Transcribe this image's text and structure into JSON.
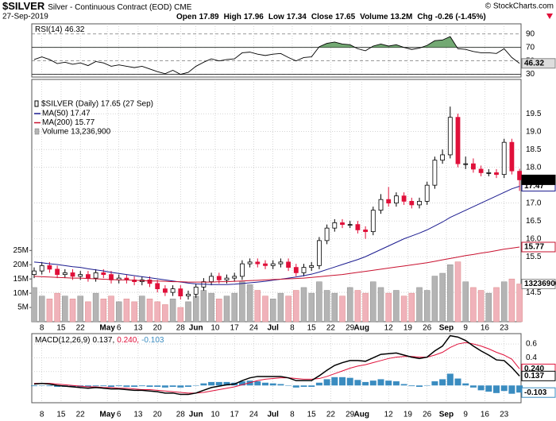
{
  "chart_data": {
    "type": "candlestick",
    "title": "$SILVER",
    "subtitle": "Silver - Continuous Contract (EOD) CME",
    "date": "27-Sep-2019",
    "quote": [
      {
        "label": "Open",
        "value": 17.89
      },
      {
        "label": "High",
        "value": 17.96
      },
      {
        "label": "Low",
        "value": 17.34
      },
      {
        "label": "Close",
        "value": 17.65
      },
      {
        "label": "Volume",
        "value": 13200000,
        "value_label": "13.2M"
      },
      {
        "label": "Chg",
        "value": -0.26,
        "value_label": "-0.26 (-1.45%)"
      }
    ],
    "credit": "© StockCharts.com",
    "legend": "$SILVER (Daily) 17.65 (27 Sep)",
    "last": 17.65,
    "up_color": "#000000",
    "down_color": "#e0103a",
    "grid": true,
    "xticks": [
      {
        "value": 1,
        "label": "8"
      },
      {
        "value": 3.5,
        "label": "15"
      },
      {
        "value": 6,
        "label": "22"
      },
      {
        "value": 9.5,
        "label": "May"
      },
      {
        "value": 11,
        "label": "6"
      },
      {
        "value": 13.5,
        "label": "13"
      },
      {
        "value": 16,
        "label": "20"
      },
      {
        "value": 19,
        "label": "28"
      },
      {
        "value": 21,
        "label": "Jun"
      },
      {
        "value": 23.5,
        "label": "10"
      },
      {
        "value": 26,
        "label": "17"
      },
      {
        "value": 28.5,
        "label": "24"
      },
      {
        "value": 31,
        "label": "Jul"
      },
      {
        "value": 33.5,
        "label": "8"
      },
      {
        "value": 36,
        "label": "15"
      },
      {
        "value": 38.5,
        "label": "22"
      },
      {
        "value": 41,
        "label": "29"
      },
      {
        "value": 42.5,
        "label": "Aug"
      },
      {
        "value": 46,
        "label": "12"
      },
      {
        "value": 48.5,
        "label": "19"
      },
      {
        "value": 51,
        "label": "26"
      },
      {
        "value": 53.5,
        "label": "Sep"
      },
      {
        "value": 56,
        "label": "9"
      },
      {
        "value": 58.5,
        "label": "16"
      },
      {
        "value": 61,
        "label": "23"
      }
    ],
    "ylim": [
      13.68,
      20.46
    ],
    "yticks": [
      14.5,
      15.5,
      {
        "value": 16,
        "label": "16.0"
      },
      16.5,
      {
        "value": 17,
        "label": "17.0"
      },
      {
        "value": 18,
        "label": "18.0"
      },
      18.5,
      {
        "value": 19,
        "label": "19.0"
      },
      19.5
    ],
    "open": [
      15.0,
      15.1,
      15.25,
      15.15,
      15.0,
      15.05,
      14.95,
      15.0,
      14.9,
      15.05,
      15.0,
      14.85,
      14.9,
      14.85,
      14.8,
      14.85,
      14.75,
      14.6,
      14.5,
      14.6,
      14.4,
      14.45,
      14.65,
      14.8,
      14.95,
      14.85,
      14.9,
      14.95,
      15.3,
      15.35,
      15.3,
      15.25,
      15.3,
      15.35,
      15.2,
      15.05,
      15.2,
      15.25,
      15.95,
      16.3,
      16.45,
      16.4,
      16.4,
      16.25,
      16.2,
      16.8,
      17.1,
      17.0,
      17.2,
      17.05,
      16.95,
      17.05,
      17.5,
      18.2,
      18.35,
      19.4,
      18.1,
      18.1,
      17.95,
      17.85,
      17.85,
      17.8,
      18.7,
      17.89
    ],
    "high": [
      15.2,
      15.35,
      15.35,
      15.25,
      15.15,
      15.15,
      15.1,
      15.1,
      15.15,
      15.15,
      15.1,
      15.0,
      15.0,
      14.95,
      14.95,
      14.95,
      14.85,
      14.7,
      14.7,
      14.7,
      14.55,
      14.75,
      14.9,
      15.05,
      15.05,
      15.0,
      15.05,
      15.4,
      15.45,
      15.45,
      15.4,
      15.4,
      15.45,
      15.45,
      15.3,
      15.3,
      15.35,
      16.05,
      16.4,
      16.55,
      16.55,
      16.5,
      16.5,
      16.35,
      16.9,
      17.25,
      17.45,
      17.3,
      17.3,
      17.15,
      17.15,
      17.6,
      18.3,
      18.5,
      19.7,
      19.5,
      18.3,
      18.25,
      18.05,
      17.95,
      17.95,
      18.8,
      18.8,
      17.96
    ],
    "low": [
      14.9,
      15.0,
      15.05,
      14.9,
      14.9,
      14.85,
      14.85,
      14.8,
      14.8,
      14.9,
      14.75,
      14.75,
      14.75,
      14.7,
      14.7,
      14.65,
      14.5,
      14.4,
      14.4,
      14.3,
      14.3,
      14.35,
      14.55,
      14.7,
      14.75,
      14.75,
      14.8,
      14.85,
      15.2,
      15.2,
      15.15,
      15.15,
      15.2,
      15.1,
      14.95,
      14.95,
      15.1,
      15.15,
      15.85,
      16.2,
      16.3,
      16.3,
      16.15,
      16.0,
      16.1,
      16.7,
      16.9,
      16.9,
      16.95,
      16.85,
      16.85,
      16.95,
      17.4,
      18.1,
      18.25,
      18.0,
      17.95,
      17.85,
      17.75,
      17.75,
      17.7,
      17.7,
      17.8,
      17.34
    ],
    "close": [
      15.1,
      15.25,
      15.15,
      15.0,
      15.05,
      14.95,
      15.0,
      14.9,
      15.05,
      15.0,
      14.85,
      14.9,
      14.85,
      14.8,
      14.85,
      14.75,
      14.6,
      14.5,
      14.6,
      14.4,
      14.45,
      14.65,
      14.8,
      14.95,
      14.85,
      14.9,
      14.95,
      15.3,
      15.35,
      15.3,
      15.25,
      15.3,
      15.35,
      15.2,
      15.05,
      15.2,
      15.25,
      15.95,
      16.3,
      16.45,
      16.4,
      16.4,
      16.25,
      16.2,
      16.8,
      17.1,
      17.0,
      17.2,
      17.05,
      16.95,
      17.05,
      17.5,
      18.2,
      18.35,
      19.4,
      18.1,
      18.1,
      17.95,
      17.85,
      17.85,
      17.8,
      18.7,
      17.9,
      17.65
    ],
    "series": [
      {
        "name": "MA(50) 17.47",
        "color": "#1b1b8f",
        "last": 17.47,
        "values": [
          15.35,
          15.33,
          15.3,
          15.28,
          15.25,
          15.22,
          15.2,
          15.16,
          15.13,
          15.1,
          15.06,
          15.03,
          15.0,
          14.97,
          14.94,
          14.91,
          14.88,
          14.85,
          14.82,
          14.79,
          14.76,
          14.74,
          14.73,
          14.72,
          14.72,
          14.72,
          14.73,
          14.75,
          14.77,
          14.79,
          14.81,
          14.84,
          14.87,
          14.9,
          14.93,
          14.97,
          15.01,
          15.07,
          15.14,
          15.21,
          15.28,
          15.35,
          15.42,
          15.5,
          15.6,
          15.7,
          15.8,
          15.9,
          16.0,
          16.08,
          16.16,
          16.25,
          16.36,
          16.47,
          16.6,
          16.7,
          16.8,
          16.9,
          17.0,
          17.1,
          17.2,
          17.3,
          17.4,
          17.47
        ]
      },
      {
        "name": "MA(200) 15.77",
        "color": "#c8102e",
        "last": 15.77,
        "values": [
          14.95,
          14.94,
          14.93,
          14.92,
          14.91,
          14.9,
          14.9,
          14.89,
          14.88,
          14.87,
          14.86,
          14.85,
          14.85,
          14.84,
          14.83,
          14.82,
          14.82,
          14.81,
          14.8,
          14.8,
          14.79,
          14.79,
          14.79,
          14.79,
          14.8,
          14.8,
          14.81,
          14.82,
          14.83,
          14.84,
          14.85,
          14.86,
          14.87,
          14.88,
          14.89,
          14.9,
          14.92,
          14.94,
          14.96,
          14.98,
          15.0,
          15.03,
          15.06,
          15.09,
          15.12,
          15.15,
          15.18,
          15.21,
          15.24,
          15.27,
          15.3,
          15.33,
          15.37,
          15.41,
          15.45,
          15.49,
          15.53,
          15.56,
          15.6,
          15.63,
          15.67,
          15.71,
          15.74,
          15.77
        ]
      }
    ],
    "volume": {
      "name": "Volume 13,236,900",
      "last": 13236900,
      "up_color": "#b4b4b4",
      "down_color": "#f0b2ba",
      "ylim": [
        0,
        85000000
      ],
      "yticks": [
        {
          "value": 5000000,
          "label": "5M"
        },
        {
          "value": 10000000,
          "label": "10M"
        },
        {
          "value": 15000000,
          "label": "15M"
        },
        {
          "value": 20000000,
          "label": "20M"
        },
        {
          "value": 25000000,
          "label": "25M"
        }
      ],
      "values": [
        12000000,
        9000000,
        8000000,
        10000000,
        9000000,
        8000000,
        9000000,
        7000000,
        10000000,
        8000000,
        9000000,
        7000000,
        8000000,
        7000000,
        9000000,
        8000000,
        7000000,
        6000000,
        8000000,
        5000000,
        7000000,
        9000000,
        11000000,
        10000000,
        8000000,
        9000000,
        10000000,
        14000000,
        13000000,
        11000000,
        9000000,
        8000000,
        10000000,
        9000000,
        11000000,
        12000000,
        10000000,
        14000000,
        11000000,
        10000000,
        9000000,
        12000000,
        11000000,
        10000000,
        14000000,
        12000000,
        10000000,
        11000000,
        9000000,
        10000000,
        12000000,
        11000000,
        16000000,
        17000000,
        20000000,
        21000000,
        14000000,
        12000000,
        11000000,
        10000000,
        12000000,
        14000000,
        15000000,
        13236900
      ]
    },
    "rsi": {
      "name": "RSI(14)",
      "last": 46.32,
      "color": "#000000",
      "fill_color": "#5a9a5a",
      "ylim": [
        26,
        105
      ],
      "yticks": [
        30,
        50,
        70,
        90
      ],
      "levels": [
        70,
        30
      ],
      "values": [
        52,
        56,
        52,
        46,
        48,
        45,
        47,
        43,
        49,
        47,
        42,
        44,
        42,
        40,
        42,
        38,
        34,
        31,
        36,
        30,
        33,
        42,
        48,
        53,
        50,
        52,
        53,
        62,
        63,
        60,
        58,
        60,
        61,
        55,
        50,
        55,
        56,
        71,
        76,
        78,
        75,
        74,
        68,
        65,
        72,
        75,
        72,
        74,
        70,
        67,
        69,
        73,
        80,
        81,
        86,
        68,
        67,
        64,
        62,
        62,
        61,
        68,
        55,
        46.32
      ]
    },
    "macd": {
      "name": "MACD(12,26,9)",
      "legend_values": [
        "0.137,",
        "0.240,",
        "-0.103"
      ],
      "ylim": [
        -0.25,
        0.75
      ],
      "yticks": [
        0.2,
        0.4,
        0.6
      ],
      "colors": [
        "#000000",
        "#e0103a",
        "#3a8cc0"
      ],
      "values": [
        0.02,
        0.03,
        0.02,
        0.0,
        -0.01,
        -0.02,
        -0.03,
        -0.04,
        -0.03,
        -0.04,
        -0.05,
        -0.05,
        -0.06,
        -0.07,
        -0.07,
        -0.08,
        -0.09,
        -0.11,
        -0.11,
        -0.13,
        -0.13,
        -0.11,
        -0.07,
        -0.03,
        -0.01,
        0.01,
        0.02,
        0.07,
        0.11,
        0.13,
        0.13,
        0.13,
        0.13,
        0.11,
        0.07,
        0.07,
        0.07,
        0.14,
        0.22,
        0.29,
        0.33,
        0.36,
        0.36,
        0.35,
        0.4,
        0.45,
        0.46,
        0.47,
        0.44,
        0.41,
        0.39,
        0.41,
        0.5,
        0.57,
        0.72,
        0.7,
        0.65,
        0.57,
        0.5,
        0.44,
        0.37,
        0.36,
        0.26,
        0.137
      ],
      "signal": [
        0.03,
        0.03,
        0.03,
        0.02,
        0.01,
        0.0,
        -0.01,
        -0.02,
        -0.02,
        -0.03,
        -0.03,
        -0.04,
        -0.04,
        -0.05,
        -0.06,
        -0.06,
        -0.07,
        -0.08,
        -0.09,
        -0.1,
        -0.11,
        -0.11,
        -0.1,
        -0.08,
        -0.06,
        -0.04,
        -0.02,
        0.01,
        0.04,
        0.07,
        0.09,
        0.1,
        0.11,
        0.11,
        0.1,
        0.09,
        0.09,
        0.1,
        0.13,
        0.17,
        0.21,
        0.25,
        0.28,
        0.3,
        0.33,
        0.36,
        0.39,
        0.41,
        0.42,
        0.42,
        0.41,
        0.41,
        0.44,
        0.48,
        0.55,
        0.6,
        0.62,
        0.6,
        0.57,
        0.53,
        0.48,
        0.44,
        0.38,
        0.24
      ],
      "histogram": [
        -0.01,
        0.0,
        -0.01,
        -0.02,
        -0.02,
        -0.02,
        -0.02,
        -0.02,
        -0.01,
        -0.01,
        -0.02,
        -0.01,
        -0.02,
        -0.02,
        -0.01,
        -0.02,
        -0.02,
        -0.03,
        -0.02,
        -0.03,
        -0.02,
        0.0,
        0.03,
        0.05,
        0.05,
        0.05,
        0.04,
        0.06,
        0.07,
        0.06,
        0.04,
        0.03,
        0.02,
        0.0,
        -0.03,
        -0.02,
        -0.02,
        0.04,
        0.09,
        0.12,
        0.12,
        0.11,
        0.08,
        0.05,
        0.07,
        0.09,
        0.07,
        0.06,
        0.02,
        -0.01,
        -0.02,
        0.0,
        0.06,
        0.09,
        0.17,
        0.1,
        0.03,
        -0.03,
        -0.07,
        -0.09,
        -0.11,
        -0.08,
        -0.12,
        -0.103
      ],
      "tags": [
        {
          "value": 0.24,
          "label": "0.240"
        },
        0.137,
        -0.103
      ]
    }
  }
}
